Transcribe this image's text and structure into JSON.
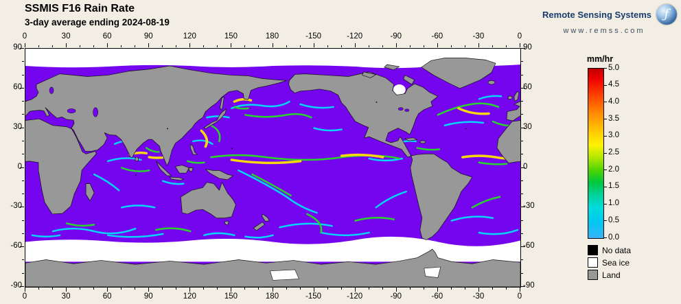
{
  "header": {
    "title": "SSMIS F16 Rain Rate",
    "subtitle": "3-day average ending 2024-08-19"
  },
  "logo": {
    "name": "Remote Sensing Systems",
    "url_text": "www.remss.com"
  },
  "map": {
    "lon_ticks": [
      "0",
      "30",
      "60",
      "90",
      "120",
      "150",
      "180",
      "-150",
      "-120",
      "-90",
      "-60",
      "-30",
      "0"
    ],
    "lat_ticks": [
      "90",
      "60",
      "30",
      "0",
      "-30",
      "-60",
      "-90"
    ]
  },
  "colorbar": {
    "unit": "mm/hr",
    "ticks": [
      "5.0",
      "4.5",
      "4.0",
      "3.5",
      "3.0",
      "2.5",
      "2.0",
      "1.5",
      "1.0",
      "0.5",
      "0.0"
    ]
  },
  "legend": [
    {
      "label": "No data",
      "color": "#000000"
    },
    {
      "label": "Sea ice",
      "color": "#ffffff"
    },
    {
      "label": "Land",
      "color": "#989898"
    }
  ],
  "colors": {
    "ocean": "#7505ef",
    "land": "#989898",
    "ice": "#ffffff",
    "background": "#f2eee3",
    "logo_navy": "#173c6d"
  }
}
